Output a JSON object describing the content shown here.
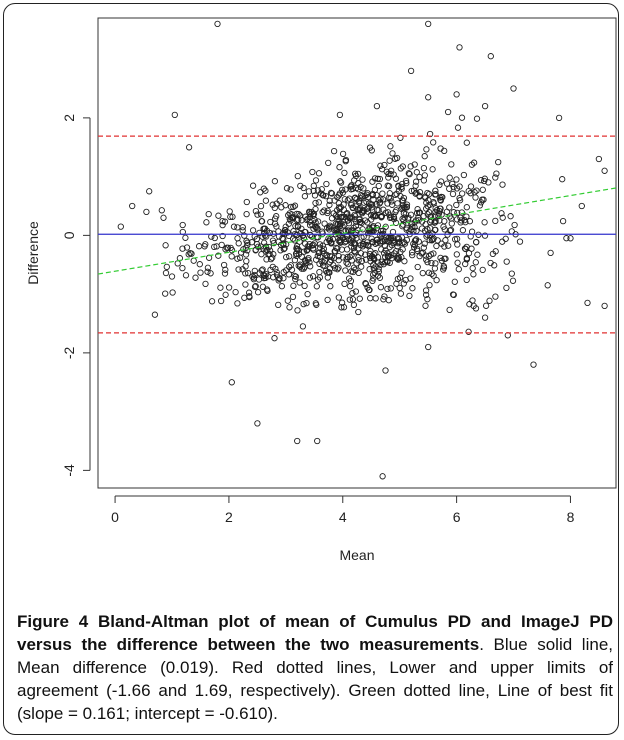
{
  "figure": {
    "label": "Figure 4",
    "title": "Bland-Altman plot of mean of Cumulus PD and ImageJ PD versus the difference between the two measurements",
    "description": ". Blue solid line, Mean difference (0.019). Red dotted lines, Lower and upper limits of agreement (-1.66 and 1.69, respectively). Green dotted line, Line of best fit (slope = 0.161; intercept = -0.610)."
  },
  "chart_data": {
    "type": "scatter",
    "xlabel": "Mean",
    "ylabel": "Difference",
    "xlim": [
      -0.3,
      8.8
    ],
    "ylim": [
      -4.3,
      3.7
    ],
    "xticks": [
      0,
      2,
      4,
      6,
      8
    ],
    "yticks": [
      -4,
      -2,
      0,
      2
    ],
    "lines": [
      {
        "name": "Mean difference",
        "y": 0.019,
        "color": "#3333cc",
        "style": "solid"
      },
      {
        "name": "Upper limit of agreement",
        "y": 1.69,
        "color": "#e03030",
        "style": "dashed"
      },
      {
        "name": "Lower limit of agreement",
        "y": -1.66,
        "color": "#e03030",
        "style": "dashed"
      },
      {
        "name": "Line of best fit",
        "slope": 0.161,
        "intercept": -0.61,
        "color": "#33cc33",
        "style": "dashed"
      }
    ],
    "points": [
      [
        1.8,
        3.6
      ],
      [
        5.5,
        3.6
      ],
      [
        6.05,
        3.2
      ],
      [
        5.2,
        2.8
      ],
      [
        6.6,
        3.05
      ],
      [
        7.0,
        2.5
      ],
      [
        6.0,
        2.4
      ],
      [
        6.5,
        2.2
      ],
      [
        5.5,
        2.35
      ],
      [
        4.6,
        2.2
      ],
      [
        1.05,
        2.05
      ],
      [
        3.95,
        2.05
      ],
      [
        7.8,
        2.0
      ],
      [
        5.85,
        2.1
      ],
      [
        8.5,
        1.3
      ],
      [
        8.6,
        1.1
      ],
      [
        8.2,
        0.5
      ],
      [
        8.0,
        -0.05
      ],
      [
        8.3,
        -1.15
      ],
      [
        8.6,
        -1.2
      ],
      [
        7.35,
        -2.2
      ],
      [
        7.6,
        -0.85
      ],
      [
        2.05,
        -2.5
      ],
      [
        2.5,
        -3.2
      ],
      [
        3.2,
        -3.5
      ],
      [
        3.55,
        -3.5
      ],
      [
        4.7,
        -4.1
      ],
      [
        4.75,
        -2.3
      ],
      [
        5.5,
        -1.9
      ],
      [
        3.3,
        -1.55
      ],
      [
        2.8,
        -1.75
      ],
      [
        0.7,
        -1.35
      ],
      [
        1.3,
        1.5
      ],
      [
        0.3,
        0.5
      ],
      [
        0.6,
        0.75
      ],
      [
        0.1,
        0.15
      ],
      [
        0.55,
        0.4
      ],
      [
        1.0,
        -0.7
      ],
      [
        0.85,
        0.3
      ],
      [
        6.3,
        -1.2
      ],
      [
        6.5,
        -1.4
      ],
      [
        6.9,
        -1.7
      ]
    ],
    "synthetic_cloud": {
      "count": 1150,
      "seed": 12345
    }
  }
}
